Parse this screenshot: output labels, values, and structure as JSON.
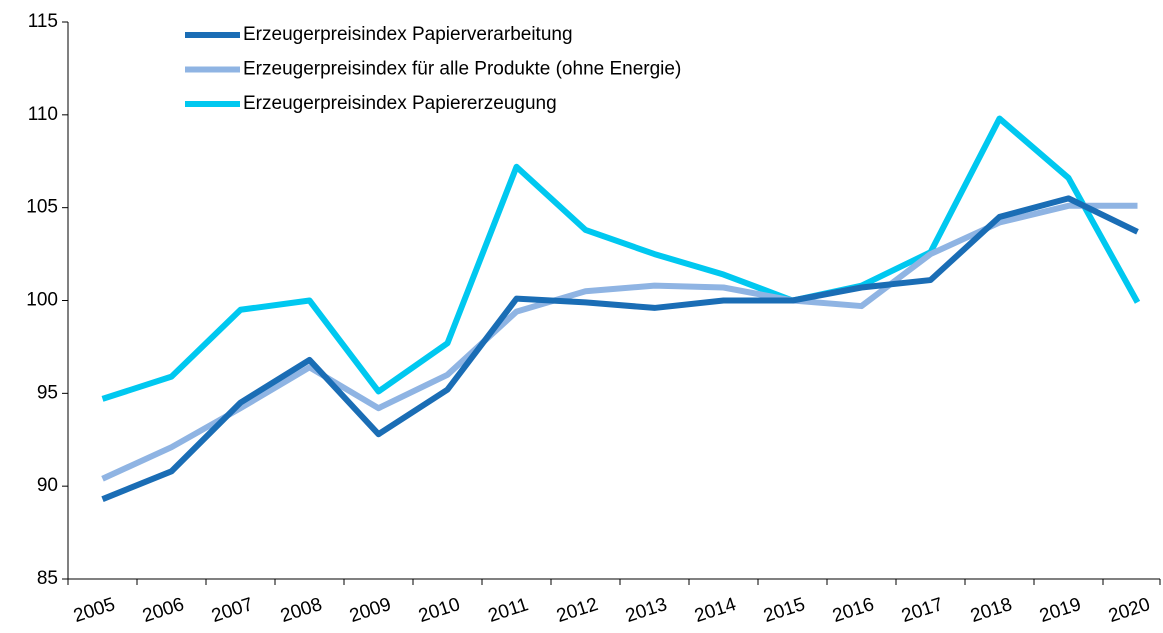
{
  "chart_data": {
    "type": "line",
    "categories": [
      "2005",
      "2006",
      "2007",
      "2008",
      "2009",
      "2010",
      "2011",
      "2012",
      "2013",
      "2014",
      "2015",
      "2016",
      "2017",
      "2018",
      "2019",
      "2020"
    ],
    "series": [
      {
        "name": "Erzeugerpreisindex Papierverarbeitung",
        "color": "#1a6db5",
        "values": [
          89.3,
          90.8,
          94.5,
          96.8,
          92.8,
          95.2,
          100.1,
          99.9,
          99.6,
          100,
          100,
          100.7,
          101.1,
          104.5,
          105.5,
          103.7
        ]
      },
      {
        "name": "Erzeugerpreisindex für alle Produkte (ohne Energie)",
        "color": "#8fb4e3",
        "values": [
          90.4,
          92.1,
          94.2,
          96.4,
          94.2,
          96.0,
          99.4,
          100.5,
          100.8,
          100.7,
          100,
          99.7,
          102.5,
          104.2,
          105.1,
          105.1
        ]
      },
      {
        "name": "Erzeugerpreisindex Papiererzeugung",
        "color": "#00c8f0",
        "values": [
          94.7,
          95.9,
          99.5,
          100,
          95.1,
          97.7,
          107.2,
          103.8,
          102.5,
          101.4,
          100,
          100.8,
          102.6,
          109.8,
          106.6,
          99.9
        ]
      }
    ],
    "ylim": [
      85,
      115
    ],
    "yticks": [
      85,
      90,
      95,
      100,
      105,
      110,
      115
    ],
    "legend": "top-left"
  }
}
